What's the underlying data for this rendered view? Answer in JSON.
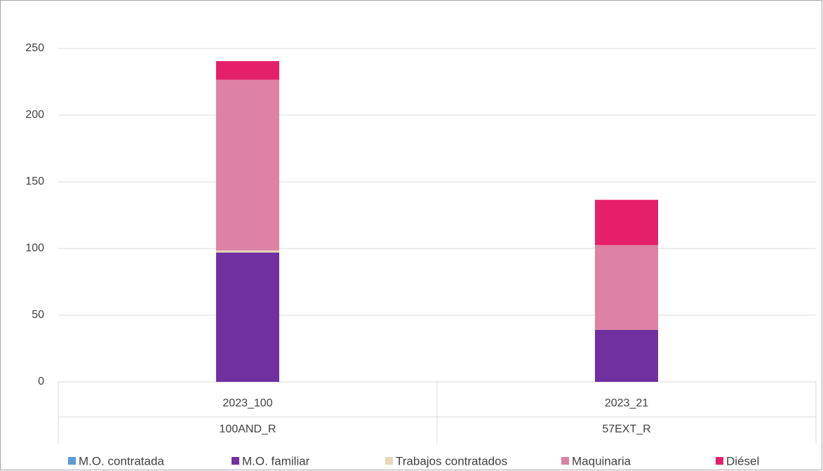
{
  "chart_data": {
    "type": "stacked_bar",
    "categories": [
      "2023_100",
      "2023_21"
    ],
    "groups": [
      "100AND_R",
      "57EXT_R"
    ],
    "series": [
      {
        "name": "M.O. contratada",
        "color": "#5b9bd5",
        "values": [
          0,
          0
        ]
      },
      {
        "name": "M.O. familiar",
        "color": "#7030a0",
        "values": [
          97,
          39
        ]
      },
      {
        "name": "Trabajos contratados",
        "color": "#e6d8b8",
        "values": [
          1.5,
          0
        ]
      },
      {
        "name": "Maquinaria",
        "color": "#dd82a4",
        "values": [
          128,
          63.5
        ]
      },
      {
        "name": "Diésel",
        "color": "#e5206a",
        "values": [
          14,
          34
        ]
      }
    ],
    "ylim": [
      0,
      250
    ],
    "yticks": [
      0,
      50,
      100,
      150,
      200,
      250
    ],
    "grid": true,
    "legend": "bottom"
  }
}
